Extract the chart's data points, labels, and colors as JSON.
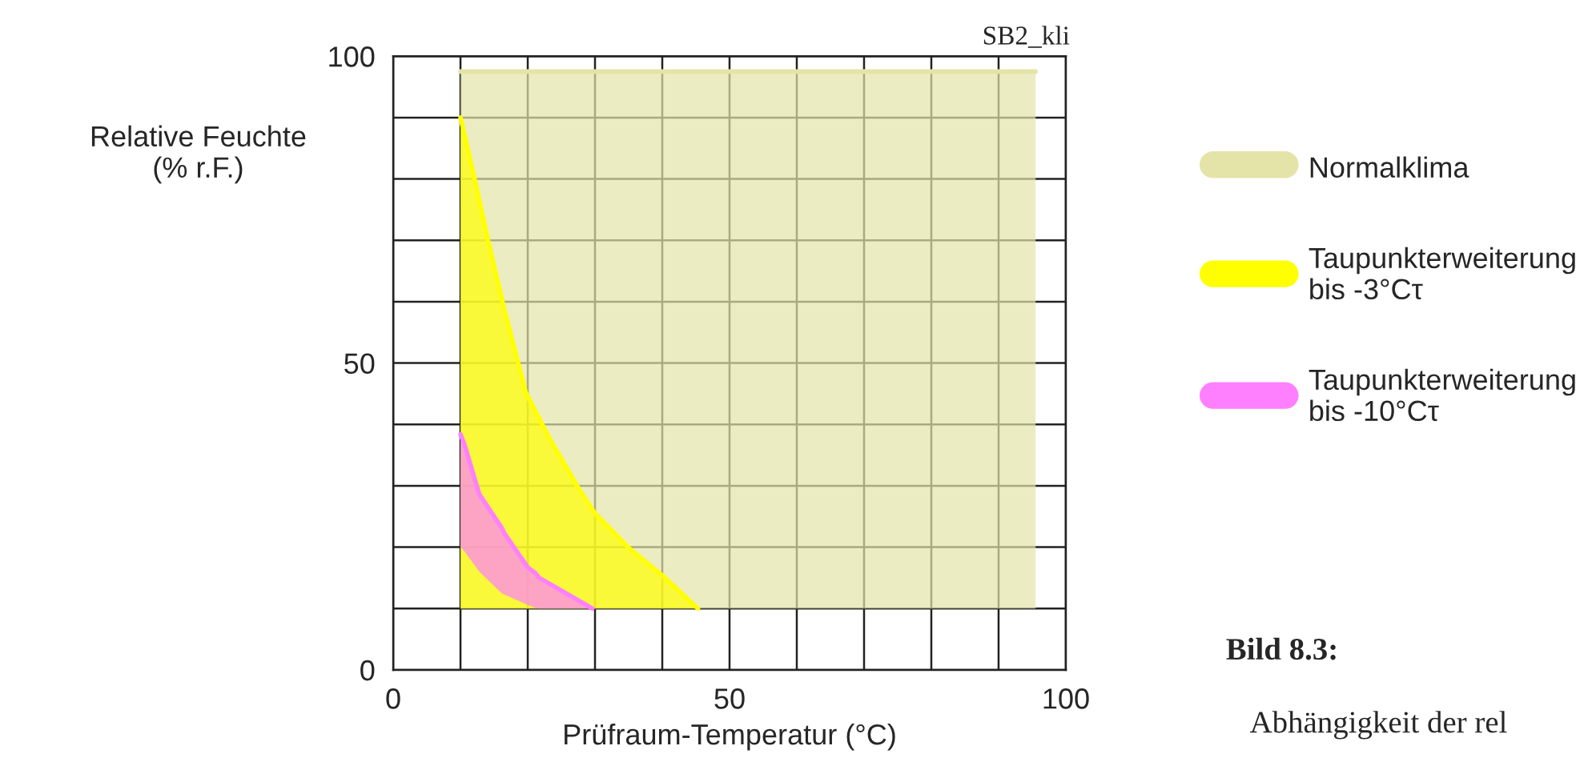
{
  "chart_data": {
    "type": "line",
    "xlabel": "Prüfraum-Temperatur (°C)",
    "ylabel": "Relative Feuchte\n(% r.F.)",
    "annotations": [
      "SB2_kli",
      "Bild 8.3:",
      "Abhängigkeit der rel"
    ],
    "xlim": [
      0,
      100
    ],
    "ylim": [
      0,
      100
    ],
    "xticks": [
      0,
      {
        "value": 10,
        "label": null
      },
      {
        "value": 20,
        "label": null
      },
      {
        "value": 30,
        "label": null
      },
      {
        "value": 40,
        "label": null
      },
      50,
      {
        "value": 60,
        "label": null
      },
      {
        "value": 70,
        "label": null
      },
      {
        "value": 80,
        "label": null
      },
      {
        "value": 90,
        "label": null
      },
      100
    ],
    "yticks": [
      0,
      {
        "value": 10,
        "label": null
      },
      {
        "value": 20,
        "label": null
      },
      {
        "value": 30,
        "label": null
      },
      {
        "value": 40,
        "label": null
      },
      50,
      {
        "value": 60,
        "label": null
      },
      {
        "value": 70,
        "label": null
      },
      {
        "value": 80,
        "label": null
      },
      {
        "value": 90,
        "label": null
      },
      100
    ],
    "grid": true,
    "legend": "right",
    "series": [
      {
        "name": "Normalklima",
        "color": "#e4e4a8",
        "x": [
          10,
          95.5
        ],
        "values": [
          97.5,
          97.5
        ],
        "lower": [
          10,
          10
        ],
        "upper": [
          97.5,
          97.5
        ]
      },
      {
        "name": "Taupunkterweiterung\nbis -3°Cτ",
        "color": "#ffff00",
        "x": [
          10,
          12.1,
          14.1,
          16.5,
          19.7,
          23.3,
          27.6,
          30,
          35.2,
          39.9,
          45.3
        ],
        "values": [
          90,
          80,
          70,
          58.8,
          45.2,
          37.6,
          29.5,
          25.5,
          19.7,
          15.5,
          10
        ],
        "lower": [
          10,
          10,
          10,
          10,
          10,
          10,
          10,
          10,
          10,
          10,
          10
        ],
        "upper": [
          90,
          80,
          70,
          58.8,
          45.2,
          37.6,
          29.5,
          25.5,
          19.7,
          15.5,
          10
        ]
      },
      {
        "name": "Taupunkterweiterung\nbis -10°Cτ",
        "color": "#ff80ff",
        "x": [
          10,
          10.6,
          12.8,
          16.1,
          16.5,
          20,
          21.1,
          21.7,
          29.6
        ],
        "values": [
          38.4,
          36.7,
          28.6,
          23.2,
          22.3,
          16.7,
          15.8,
          15,
          10
        ],
        "lower": [
          20,
          19.3,
          16,
          12.5,
          12.3,
          10.6,
          10.1,
          10,
          10
        ],
        "upper": [
          38.4,
          36.7,
          28.6,
          23.2,
          22.3,
          16.7,
          15.8,
          15,
          10
        ]
      }
    ]
  }
}
